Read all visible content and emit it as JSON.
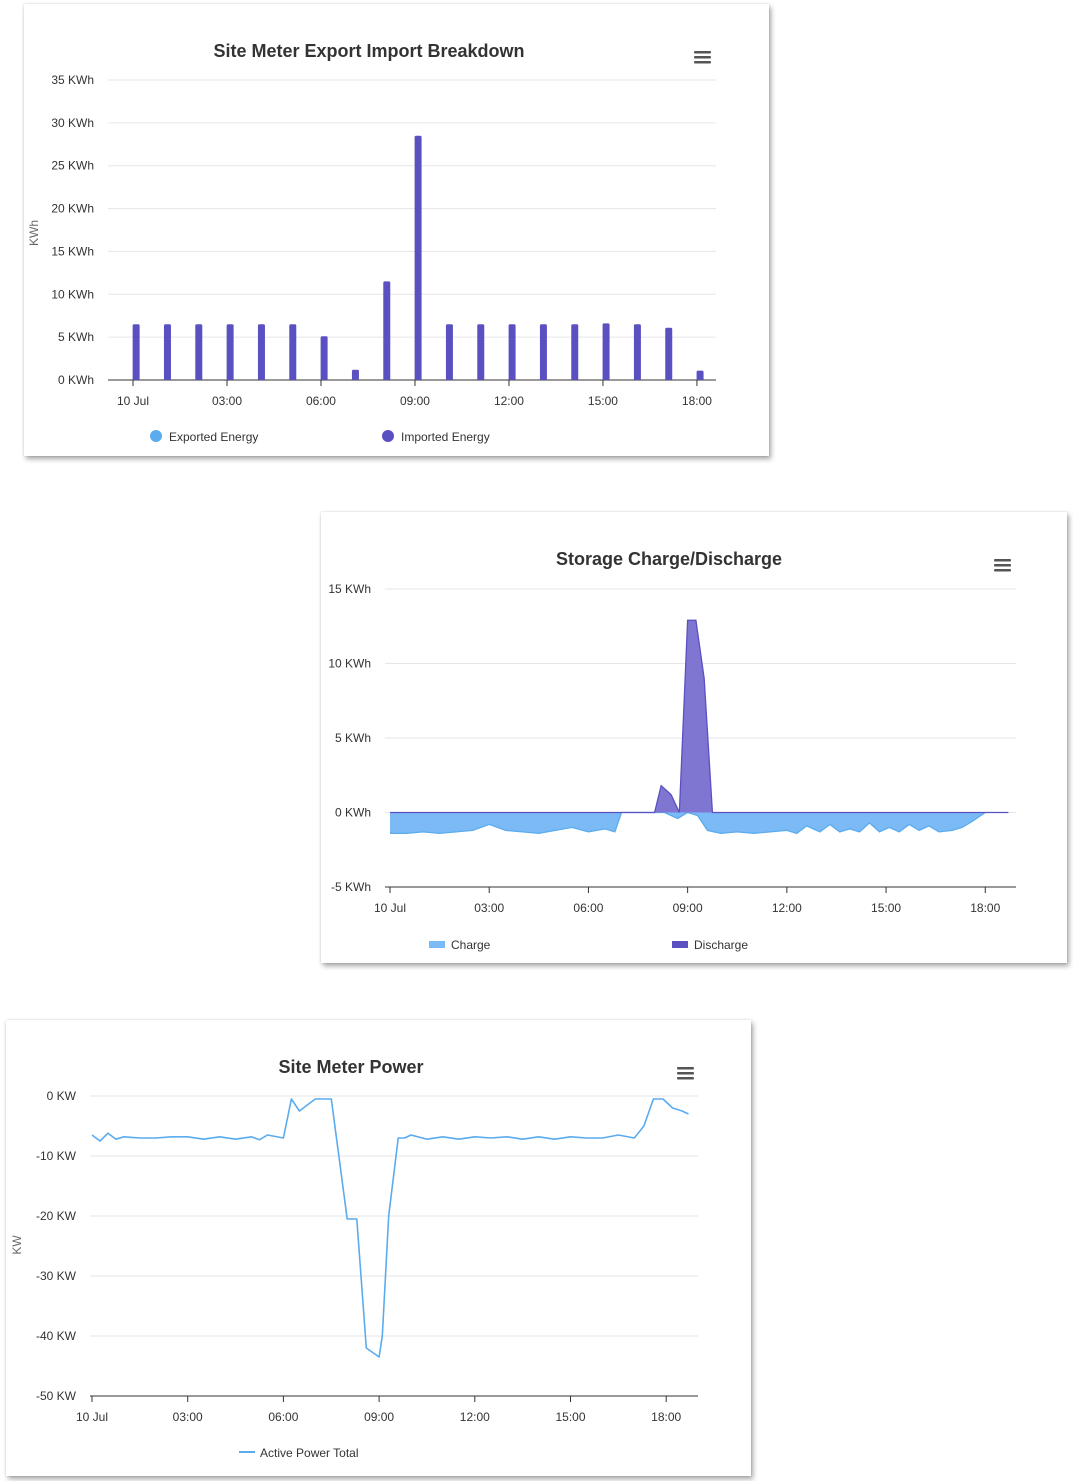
{
  "chart_data": [
    {
      "type": "bar",
      "title": "Site Meter Export Import Breakdown",
      "ylabel": "KWh",
      "ylim": [
        0,
        35
      ],
      "yticks": [
        "0 KWh",
        "5 KWh",
        "10 KWh",
        "15 KWh",
        "20 KWh",
        "25 KWh",
        "30 KWh",
        "35 KWh"
      ],
      "xticks": [
        "10 Jul",
        "03:00",
        "06:00",
        "09:00",
        "12:00",
        "15:00",
        "18:00"
      ],
      "x_hours": [
        0.1,
        1.1,
        2.1,
        3.1,
        4.1,
        5.1,
        6.1,
        7.1,
        8.1,
        9.1,
        10.1,
        11.1,
        12.1,
        13.1,
        14.1,
        15.1,
        16.1,
        17.1,
        18.1
      ],
      "series": [
        {
          "name": "Exported Energy",
          "color": "#5aacef",
          "values": [
            0,
            0,
            0,
            0,
            0,
            0,
            0,
            0,
            0,
            0,
            0,
            0,
            0,
            0,
            0,
            0,
            0,
            0,
            0
          ]
        },
        {
          "name": "Imported Energy",
          "color": "#5a50c2",
          "values": [
            6.5,
            6.5,
            6.5,
            6.5,
            6.5,
            6.5,
            5.1,
            1.2,
            11.5,
            28.5,
            6.5,
            6.5,
            6.5,
            6.5,
            6.5,
            6.6,
            6.5,
            6.1,
            1.1
          ]
        }
      ],
      "legend": "bottom",
      "grid": true
    },
    {
      "type": "area",
      "title": "Storage Charge/Discharge",
      "ylim": [
        -5,
        15
      ],
      "yticks": [
        "-5 KWh",
        "0 KWh",
        "5 KWh",
        "10 KWh",
        "15 KWh"
      ],
      "xticks": [
        "10 Jul",
        "03:00",
        "06:00",
        "09:00",
        "12:00",
        "15:00",
        "18:00"
      ],
      "series": [
        {
          "name": "Charge",
          "color": "#5aacef",
          "x": [
            0,
            0.5,
            1,
            1.5,
            2,
            2.5,
            3,
            3.5,
            4,
            4.5,
            5,
            5.5,
            6,
            6.5,
            6.8,
            7,
            8,
            8.3,
            8.7,
            9,
            9.3,
            9.6,
            10,
            10.5,
            11,
            11.5,
            12,
            12.3,
            12.6,
            13,
            13.3,
            13.6,
            13.9,
            14.2,
            14.5,
            14.8,
            15.1,
            15.4,
            15.7,
            16,
            16.3,
            16.6,
            17,
            17.3,
            17.6,
            18
          ],
          "y": [
            -1.4,
            -1.4,
            -1.3,
            -1.4,
            -1.3,
            -1.2,
            -0.8,
            -1.2,
            -1.3,
            -1.4,
            -1.2,
            -1.0,
            -1.3,
            -1.1,
            -1.3,
            0,
            0,
            0,
            -0.4,
            0,
            -0.2,
            -1.2,
            -1.4,
            -1.3,
            -1.4,
            -1.3,
            -1.2,
            -1.4,
            -0.9,
            -1.3,
            -0.8,
            -1.3,
            -1.1,
            -1.3,
            -0.7,
            -1.3,
            -1.0,
            -1.3,
            -0.8,
            -1.2,
            -0.9,
            -1.3,
            -1.2,
            -1.0,
            -0.6,
            0
          ]
        },
        {
          "name": "Discharge",
          "color": "#5a50c2",
          "x": [
            0,
            8,
            8.2,
            8.5,
            8.75,
            9,
            9.25,
            9.5,
            9.75,
            18.7
          ],
          "y": [
            0,
            0,
            1.8,
            1.2,
            0,
            12.9,
            12.9,
            9.0,
            0,
            0
          ]
        }
      ],
      "legend": "bottom",
      "grid": true
    },
    {
      "type": "line",
      "title": "Site Meter Power",
      "ylabel": "KW",
      "ylim": [
        -50,
        0
      ],
      "yticks": [
        "-50 KW",
        "-40 KW",
        "-30 KW",
        "-20 KW",
        "-10 KW",
        "0 KW"
      ],
      "xticks": [
        "10 Jul",
        "03:00",
        "06:00",
        "09:00",
        "12:00",
        "15:00",
        "18:00"
      ],
      "series": [
        {
          "name": "Active Power Total",
          "color": "#5aacef",
          "x": [
            0,
            0.25,
            0.5,
            0.75,
            1,
            1.5,
            2,
            2.5,
            3,
            3.5,
            4,
            4.5,
            5,
            5.25,
            5.5,
            6,
            6.25,
            6.5,
            6.75,
            7,
            7.5,
            8,
            8.3,
            8.6,
            9,
            9.1,
            9.3,
            9.6,
            9.8,
            10,
            10.5,
            11,
            11.5,
            12,
            12.5,
            13,
            13.5,
            14,
            14.5,
            15,
            15.5,
            16,
            16.5,
            17,
            17.3,
            17.6,
            17.9,
            18.2,
            18.5,
            18.7
          ],
          "y": [
            -6.5,
            -7.5,
            -6.2,
            -7.2,
            -6.8,
            -7.0,
            -7.0,
            -6.8,
            -6.8,
            -7.2,
            -6.8,
            -7.2,
            -6.8,
            -7.3,
            -6.5,
            -7.0,
            -0.5,
            -2.5,
            -1.5,
            -0.5,
            -0.5,
            -20.5,
            -20.5,
            -42.0,
            -43.5,
            -40.0,
            -20.0,
            -7.0,
            -7.0,
            -6.5,
            -7.2,
            -6.8,
            -7.2,
            -6.8,
            -7.0,
            -6.8,
            -7.2,
            -6.8,
            -7.2,
            -6.8,
            -7.0,
            -7.0,
            -6.5,
            -7.0,
            -5.0,
            -0.5,
            -0.5,
            -2.0,
            -2.5,
            -3.0
          ]
        }
      ],
      "legend": "bottom",
      "grid": true
    }
  ]
}
